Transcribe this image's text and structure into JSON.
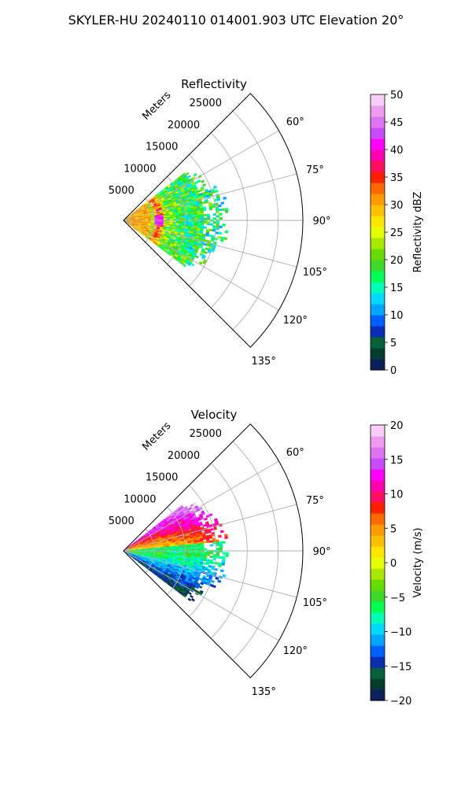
{
  "figure": {
    "suptitle": "SKYLER-HU  20240110  014001.903 UTC Elevation 20°"
  },
  "chart_data": [
    {
      "type": "heatmap",
      "subtype": "polar-sector (PPI)",
      "title": "Reflectivity",
      "radial_label": "Meters",
      "radial_ticks": [
        "5000",
        "10000",
        "15000",
        "20000",
        "25000"
      ],
      "radial_tick_values": [
        5000,
        10000,
        15000,
        20000,
        25000
      ],
      "rlim": [
        0,
        29000
      ],
      "angular_ticks": [
        "60°",
        "75°",
        "90°",
        "105°",
        "120°",
        "135°"
      ],
      "angular_tick_values": [
        60,
        75,
        90,
        105,
        120,
        135
      ],
      "theta_range_deg": [
        45,
        135
      ],
      "grid": true,
      "colorbar": {
        "label": "Reflectivity dBZ",
        "range": [
          0,
          50
        ],
        "ticks": [
          "0",
          "5",
          "10",
          "15",
          "20",
          "25",
          "30",
          "35",
          "40",
          "45",
          "50"
        ],
        "tick_values": [
          0,
          5,
          10,
          15,
          20,
          25,
          30,
          35,
          40,
          45,
          50
        ],
        "colors": [
          "#0d1f5c",
          "#063c30",
          "#07613b",
          "#0a2eb3",
          "#0060ff",
          "#00a5ff",
          "#00d8ff",
          "#00ffb4",
          "#00ff55",
          "#3ed82b",
          "#66dd00",
          "#a8e800",
          "#e6ff00",
          "#ffe600",
          "#ffc000",
          "#ff9a00",
          "#ff6a00",
          "#ff2000",
          "#ff1060",
          "#ff00b0",
          "#ff00ff",
          "#c84bff",
          "#de74f0",
          "#ee9cf0",
          "#f8cdf6"
        ]
      },
      "data_extent_m": 17000,
      "data_theta_range_deg": [
        52,
        127
      ]
    },
    {
      "type": "heatmap",
      "subtype": "polar-sector (PPI)",
      "title": "Velocity",
      "radial_label": "Meters",
      "radial_ticks": [
        "5000",
        "10000",
        "15000",
        "20000",
        "25000"
      ],
      "radial_tick_values": [
        5000,
        10000,
        15000,
        20000,
        25000
      ],
      "rlim": [
        0,
        29000
      ],
      "angular_ticks": [
        "60°",
        "75°",
        "90°",
        "105°",
        "120°",
        "135°"
      ],
      "angular_tick_values": [
        60,
        75,
        90,
        105,
        120,
        135
      ],
      "theta_range_deg": [
        45,
        135
      ],
      "grid": true,
      "colorbar": {
        "label": "Velocity (m/s)",
        "range": [
          -20,
          20
        ],
        "ticks": [
          "−20",
          "−15",
          "−10",
          "−5",
          "0",
          "5",
          "10",
          "15",
          "20"
        ],
        "tick_values": [
          -20,
          -15,
          -10,
          -5,
          0,
          5,
          10,
          15,
          20
        ],
        "colors": [
          "#0d1f5c",
          "#063c30",
          "#07613b",
          "#0a2eb3",
          "#0060ff",
          "#00a5ff",
          "#00d8ff",
          "#00ffb4",
          "#00ff55",
          "#3ed82b",
          "#66dd00",
          "#a8e800",
          "#e6ff00",
          "#ffe600",
          "#ffc000",
          "#ff9a00",
          "#ff6a00",
          "#ff2000",
          "#ff1060",
          "#ff00b0",
          "#ff00ff",
          "#c84bff",
          "#de74f0",
          "#ee9cf0",
          "#f8cdf6"
        ]
      },
      "data_extent_m": 17000,
      "data_theta_range_deg": [
        52,
        127
      ]
    }
  ]
}
